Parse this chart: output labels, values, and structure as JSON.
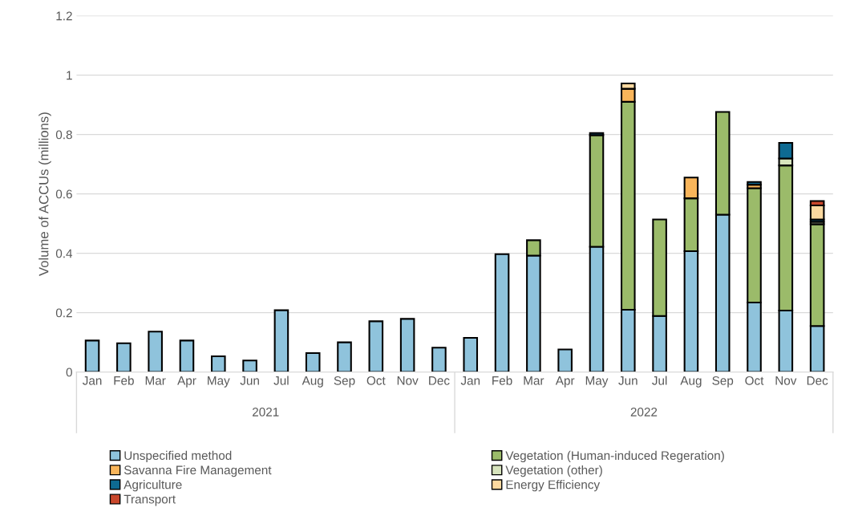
{
  "chart_data": {
    "type": "bar",
    "stacked": true,
    "ylabel": "Volume of ACCUs (millions)",
    "categories": [
      "Jan",
      "Feb",
      "Mar",
      "Apr",
      "May",
      "Jun",
      "Jul",
      "Aug",
      "Sep",
      "Oct",
      "Nov",
      "Dec",
      "Jan",
      "Feb",
      "Mar",
      "Apr",
      "May",
      "Jun",
      "Jul",
      "Aug",
      "Sep",
      "Oct",
      "Nov",
      "Dec"
    ],
    "annotations": [
      "2021",
      "2022"
    ],
    "ylim": [
      0,
      1.2
    ],
    "yticks": [
      0,
      0.2,
      0.4,
      0.6,
      0.8,
      1,
      1.2
    ],
    "grid": "y",
    "legend": "bottom",
    "series": [
      {
        "name": "Unspecified method",
        "color": "#8fc3dc",
        "values": [
          0.106,
          0.097,
          0.136,
          0.106,
          0.053,
          0.039,
          0.208,
          0.064,
          0.1,
          0.171,
          0.179,
          0.082,
          0.115,
          0.397,
          0.392,
          0.076,
          0.422,
          0.21,
          0.189,
          0.407,
          0.53,
          0.234,
          0.207,
          0.155
        ]
      },
      {
        "name": "Vegetation (Human-induced Regeration)",
        "color": "#9bbb6a",
        "values": [
          null,
          null,
          null,
          null,
          null,
          null,
          null,
          null,
          null,
          null,
          null,
          null,
          null,
          null,
          0.052,
          null,
          0.376,
          0.7,
          0.325,
          0.178,
          0.346,
          0.385,
          0.489,
          0.343
        ]
      },
      {
        "name": "Savanna Fire Management",
        "color": "#f9b55a",
        "values": [
          null,
          null,
          null,
          null,
          null,
          null,
          null,
          null,
          null,
          null,
          null,
          null,
          null,
          null,
          null,
          null,
          null,
          0.044,
          null,
          0.07,
          null,
          0.012,
          null,
          null
        ]
      },
      {
        "name": "Vegetation (other)",
        "color": "#d7e4bd",
        "values": [
          null,
          null,
          null,
          null,
          null,
          null,
          null,
          null,
          null,
          null,
          null,
          null,
          null,
          null,
          null,
          null,
          null,
          null,
          null,
          null,
          null,
          null,
          0.023,
          0.008
        ]
      },
      {
        "name": "Agriculture",
        "color": "#0e6a92",
        "values": [
          null,
          null,
          null,
          null,
          null,
          null,
          null,
          null,
          null,
          null,
          null,
          null,
          null,
          null,
          null,
          null,
          0.007,
          null,
          null,
          null,
          null,
          0.009,
          0.053,
          0.008
        ]
      },
      {
        "name": "Energy Efficiency",
        "color": "#fcd9a0",
        "values": [
          null,
          null,
          null,
          null,
          null,
          null,
          null,
          null,
          null,
          null,
          null,
          null,
          null,
          null,
          null,
          null,
          null,
          0.018,
          null,
          null,
          null,
          null,
          null,
          0.047
        ]
      },
      {
        "name": "Transport",
        "color": "#c9472b",
        "values": [
          null,
          null,
          null,
          null,
          null,
          null,
          null,
          null,
          null,
          null,
          null,
          null,
          null,
          null,
          null,
          null,
          null,
          null,
          null,
          null,
          null,
          null,
          null,
          0.015
        ]
      }
    ]
  }
}
